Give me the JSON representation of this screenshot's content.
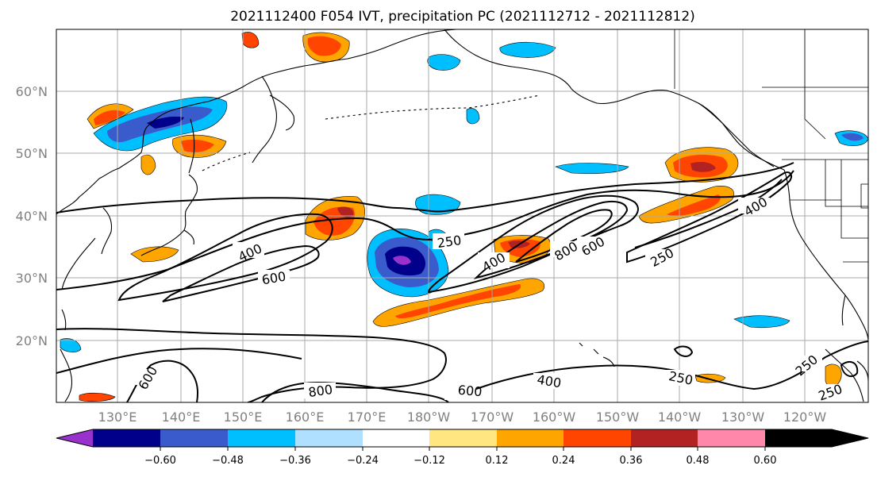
{
  "title": "2021112400 F054 IVT, precipitation PC (2021112712 - 2021112812)",
  "lat_labels": [
    "60°N",
    "50°N",
    "40°N",
    "30°N",
    "20°N"
  ],
  "lon_labels": [
    "130°E",
    "140°E",
    "150°E",
    "160°E",
    "170°E",
    "180°W",
    "170°W",
    "160°W",
    "150°W",
    "140°W",
    "130°W",
    "120°W"
  ],
  "contour_labels": [
    "400",
    "600",
    "250",
    "400",
    "800",
    "600",
    "250",
    "400",
    "600",
    "800",
    "600",
    "400",
    "250",
    "250",
    "250"
  ],
  "colorbar": {
    "ticks": [
      "−0.60",
      "−0.48",
      "−0.36",
      "−0.24",
      "−0.12",
      "0.12",
      "0.24",
      "0.36",
      "0.48",
      "0.60"
    ],
    "colors": [
      "#9932cc",
      "#00008b",
      "#3a5bcc",
      "#00bfff",
      "#b0e0ff",
      "#ffffff",
      "#ffe680",
      "#ffa500",
      "#ff4500",
      "#b22222",
      "#ff88aa"
    ]
  }
}
